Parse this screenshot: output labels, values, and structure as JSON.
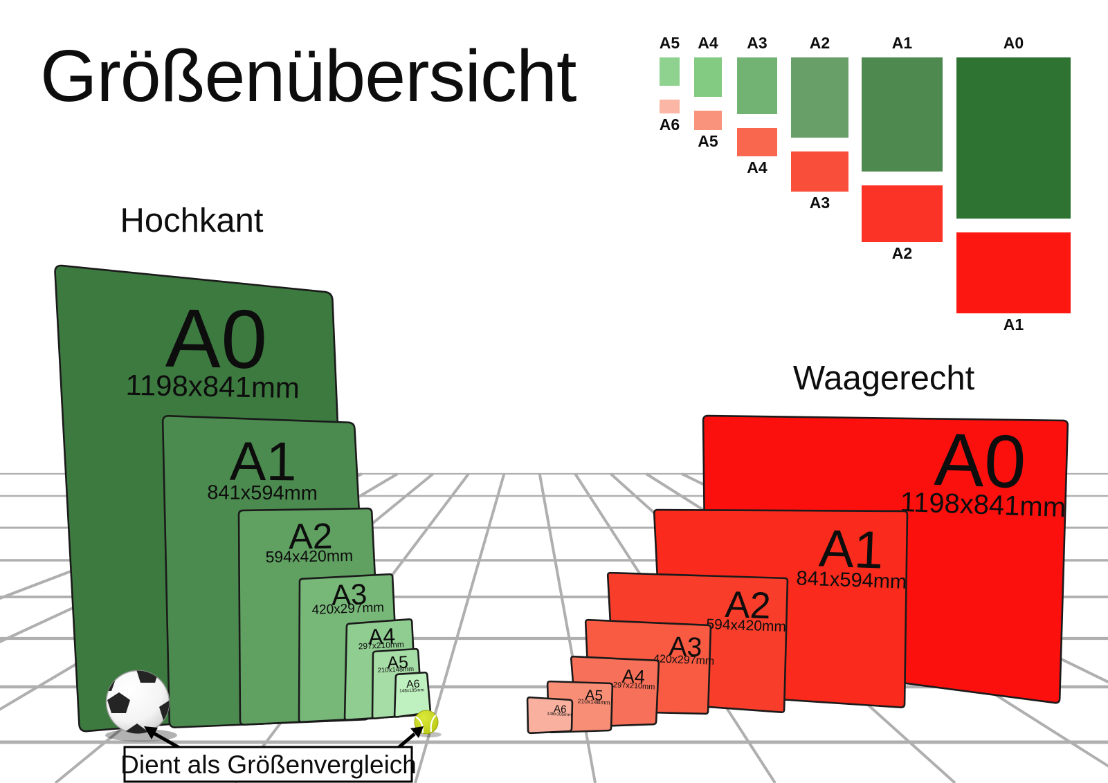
{
  "title": "Größenübersicht",
  "caption": "Dient als Größenvergleich",
  "hochkant": {
    "heading": "Hochkant",
    "sheets": [
      {
        "name": "A0",
        "dims": "1198x841mm"
      },
      {
        "name": "A1",
        "dims": "841x594mm"
      },
      {
        "name": "A2",
        "dims": "594x420mm"
      },
      {
        "name": "A3",
        "dims": "420x297mm"
      },
      {
        "name": "A4",
        "dims": "297x210mm"
      },
      {
        "name": "A5",
        "dims": "210x148mm"
      },
      {
        "name": "A6",
        "dims": "148x105mm"
      }
    ]
  },
  "waagerecht": {
    "heading": "Waagerecht",
    "sheets": [
      {
        "name": "A0",
        "dims": "1198x841mm"
      },
      {
        "name": "A1",
        "dims": "841x594mm"
      },
      {
        "name": "A2",
        "dims": "594x420mm"
      },
      {
        "name": "A3",
        "dims": "420x297mm"
      },
      {
        "name": "A4",
        "dims": "297x210mm"
      },
      {
        "name": "A5",
        "dims": "210x148mm"
      },
      {
        "name": "A6",
        "dims": "148x105mm"
      }
    ]
  },
  "size_chart": {
    "columns": [
      {
        "portrait": "A5",
        "landscape": "A6"
      },
      {
        "portrait": "A4",
        "landscape": "A5"
      },
      {
        "portrait": "A3",
        "landscape": "A4"
      },
      {
        "portrait": "A2",
        "landscape": "A3"
      },
      {
        "portrait": "A1",
        "landscape": "A2"
      },
      {
        "portrait": "A0",
        "landscape": "A1"
      }
    ]
  },
  "colors": {
    "hochkant_shades": [
      "#3D7A40",
      "#4C8B4F",
      "#60A162",
      "#77B778",
      "#90CD91",
      "#A6DDA6",
      "#BFF0BF"
    ],
    "waagerecht_shades": [
      "#FC100E",
      "#FA2A1C",
      "#F93D2B",
      "#F85A42",
      "#F7715A",
      "#F88E76",
      "#F9B09E"
    ],
    "chart_green_shades": [
      "#8FD290",
      "#83CA83",
      "#72B273",
      "#689E68",
      "#4E8A50",
      "#2E7332"
    ],
    "chart_red_shades": [
      "#FBB6A6",
      "#F9937B",
      "#F8674E",
      "#F94E3A",
      "#FA3326",
      "#FC1711"
    ],
    "grid_line": "#AFAFAF",
    "sheet_outline": "#1A1A1A",
    "text": "#0D0D0D",
    "soccer_patch": "#242424",
    "tennis_ball": "#C6D31F"
  }
}
